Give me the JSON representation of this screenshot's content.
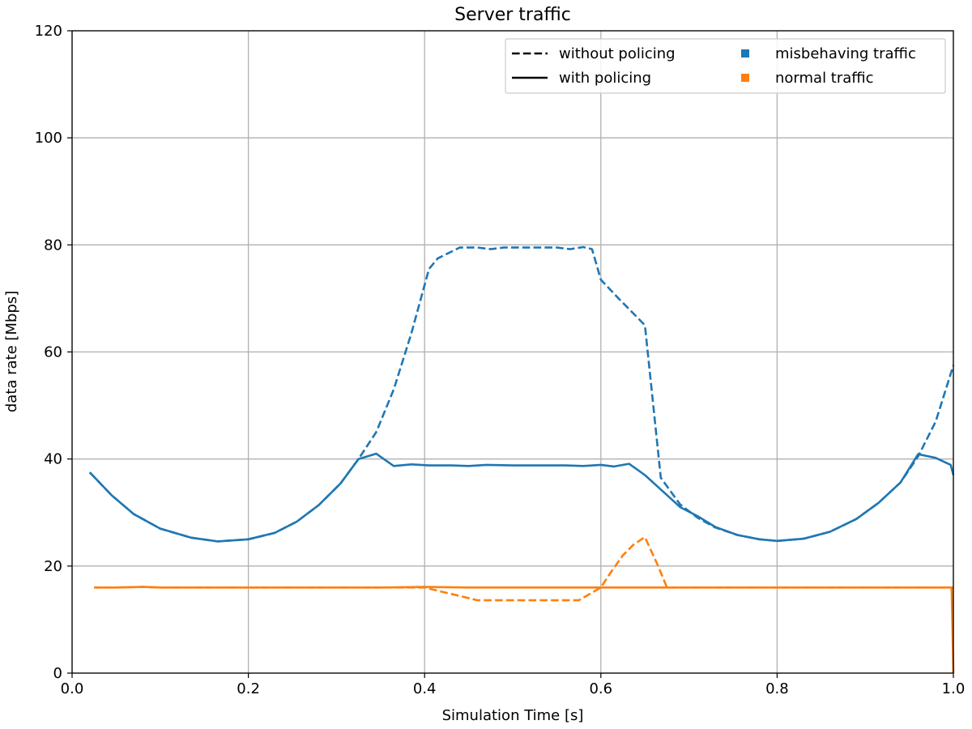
{
  "chart_data": {
    "type": "line",
    "title": "Server traffic",
    "xlabel": "Simulation Time [s]",
    "ylabel": "data rate [Mbps]",
    "xlim": [
      0.0,
      1.0
    ],
    "ylim": [
      0,
      120
    ],
    "xticks": [
      0.0,
      0.2,
      0.4,
      0.6,
      0.8,
      1.0
    ],
    "xtick_labels": [
      "0.0",
      "0.2",
      "0.4",
      "0.6",
      "0.8",
      "1.0"
    ],
    "yticks": [
      0,
      20,
      40,
      60,
      80,
      100,
      120
    ],
    "ytick_labels": [
      "0",
      "20",
      "40",
      "60",
      "80",
      "100",
      "120"
    ],
    "grid": true,
    "legend": {
      "position": "top-right",
      "columns": 2,
      "entries": [
        {
          "label": "without policing",
          "kind": "line",
          "dash": "dashed",
          "color": "#000000"
        },
        {
          "label": "with policing",
          "kind": "line",
          "dash": "solid",
          "color": "#000000"
        },
        {
          "label": "misbehaving traffic",
          "kind": "square",
          "color": "#1f77b4"
        },
        {
          "label": "normal traffic",
          "kind": "square",
          "color": "#ff7f0e"
        }
      ]
    },
    "series": [
      {
        "name": "misbehaving traffic without policing",
        "color": "#1f77b4",
        "dash": "dashed",
        "x": [
          0.02,
          0.045,
          0.07,
          0.1,
          0.135,
          0.165,
          0.2,
          0.23,
          0.255,
          0.28,
          0.305,
          0.325,
          0.345,
          0.365,
          0.385,
          0.405,
          0.415,
          0.425,
          0.44,
          0.46,
          0.475,
          0.49,
          0.51,
          0.53,
          0.55,
          0.565,
          0.58,
          0.59,
          0.6,
          0.62,
          0.635,
          0.65,
          0.668,
          0.69,
          0.71,
          0.73,
          0.755,
          0.78,
          0.8,
          0.83,
          0.86,
          0.89,
          0.915,
          0.94,
          0.96,
          0.98,
          1.0
        ],
        "y": [
          37.5,
          33.2,
          29.7,
          27.0,
          25.3,
          24.6,
          25.0,
          26.2,
          28.3,
          31.4,
          35.5,
          40.0,
          45.0,
          53.0,
          63.5,
          75.5,
          77.5,
          78.3,
          79.5,
          79.5,
          79.2,
          79.5,
          79.5,
          79.5,
          79.5,
          79.2,
          79.6,
          79.2,
          73.5,
          70.0,
          67.5,
          65.0,
          36.5,
          31.5,
          29.0,
          27.2,
          25.8,
          25.0,
          24.7,
          25.1,
          26.4,
          28.8,
          31.8,
          35.6,
          40.5,
          47.0,
          57.5
        ]
      },
      {
        "name": "misbehaving traffic with policing",
        "color": "#1f77b4",
        "dash": "solid",
        "x": [
          0.02,
          0.045,
          0.07,
          0.1,
          0.135,
          0.165,
          0.2,
          0.23,
          0.255,
          0.28,
          0.305,
          0.325,
          0.345,
          0.365,
          0.385,
          0.405,
          0.43,
          0.45,
          0.47,
          0.5,
          0.53,
          0.56,
          0.58,
          0.6,
          0.615,
          0.632,
          0.65,
          0.67,
          0.69,
          0.71,
          0.73,
          0.755,
          0.78,
          0.8,
          0.83,
          0.86,
          0.89,
          0.915,
          0.94,
          0.96,
          0.98,
          0.997,
          1.0
        ],
        "y": [
          37.5,
          33.2,
          29.7,
          27.0,
          25.3,
          24.6,
          25.0,
          26.2,
          28.3,
          31.4,
          35.5,
          40.0,
          41.0,
          38.7,
          39.0,
          38.8,
          38.8,
          38.7,
          38.9,
          38.8,
          38.8,
          38.8,
          38.7,
          38.9,
          38.6,
          39.1,
          37.0,
          34.0,
          31.0,
          29.3,
          27.3,
          25.8,
          25.0,
          24.7,
          25.1,
          26.4,
          28.8,
          31.8,
          35.6,
          40.9,
          40.2,
          38.9,
          37.0
        ]
      },
      {
        "name": "normal traffic without policing",
        "color": "#ff7f0e",
        "dash": "dashed",
        "x": [
          0.025,
          0.05,
          0.08,
          0.1,
          0.15,
          0.2,
          0.25,
          0.3,
          0.35,
          0.4,
          0.405,
          0.42,
          0.44,
          0.46,
          0.5,
          0.54,
          0.575,
          0.6,
          0.612,
          0.625,
          0.637,
          0.65,
          0.665,
          0.675,
          0.7,
          0.75,
          0.8,
          0.85,
          0.9,
          0.95,
          1.0
        ],
        "y": [
          16.0,
          16.0,
          16.1,
          16.0,
          16.0,
          16.0,
          16.0,
          16.0,
          16.0,
          16.0,
          15.8,
          15.2,
          14.4,
          13.6,
          13.6,
          13.6,
          13.6,
          16.0,
          19.0,
          22.0,
          24.0,
          25.4,
          20.0,
          16.0,
          16.0,
          16.0,
          16.0,
          16.0,
          16.0,
          16.0,
          16.0
        ]
      },
      {
        "name": "normal traffic with policing",
        "color": "#ff7f0e",
        "dash": "solid",
        "x": [
          0.025,
          0.05,
          0.08,
          0.1,
          0.15,
          0.2,
          0.25,
          0.3,
          0.35,
          0.4,
          0.45,
          0.5,
          0.55,
          0.6,
          0.65,
          0.7,
          0.75,
          0.8,
          0.85,
          0.9,
          0.95,
          0.998,
          0.999,
          1.0
        ],
        "y": [
          16.0,
          16.0,
          16.1,
          16.0,
          16.0,
          16.0,
          16.0,
          16.0,
          16.0,
          16.1,
          16.0,
          16.0,
          16.0,
          16.0,
          16.0,
          16.0,
          16.0,
          16.0,
          16.0,
          16.0,
          16.0,
          16.0,
          8.0,
          0.0
        ]
      }
    ]
  }
}
